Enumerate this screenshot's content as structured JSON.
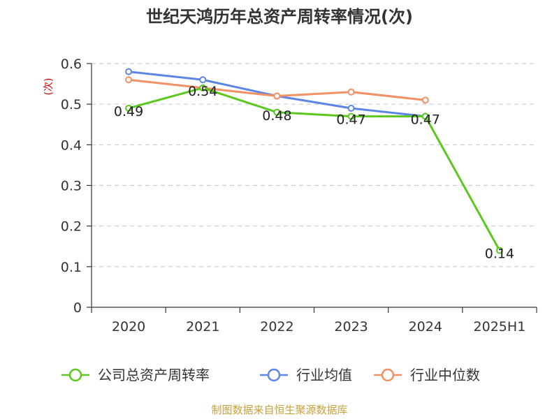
{
  "chart_data": {
    "type": "line",
    "title": "世纪天鸿历年总资产周转率情况(次)",
    "ylabel": "(次)",
    "xlabel": "",
    "categories": [
      "2020",
      "2021",
      "2022",
      "2023",
      "2024",
      "2025H1"
    ],
    "ylim": [
      0,
      0.6
    ],
    "yticks": [
      0,
      0.1,
      0.2,
      0.3,
      0.4,
      0.5,
      0.6
    ],
    "ytick_labels": [
      "0",
      "0.1",
      "0.2",
      "0.3",
      "0.4",
      "0.5",
      "0.6"
    ],
    "grid": true,
    "legend_position": "bottom",
    "series": [
      {
        "name": "公司总资产周转率",
        "color": "#5cc71e",
        "values": [
          0.49,
          0.54,
          0.48,
          0.47,
          0.47,
          0.14
        ],
        "data_labels": [
          "0.49",
          "0.54",
          "0.48",
          "0.47",
          "0.47",
          "0.14"
        ]
      },
      {
        "name": "行业均值",
        "color": "#5b86e5",
        "values": [
          0.58,
          0.56,
          0.52,
          0.49,
          0.47,
          null
        ]
      },
      {
        "name": "行业中位数",
        "color": "#f39064",
        "values": [
          0.56,
          0.54,
          0.52,
          0.53,
          0.51,
          null
        ]
      }
    ],
    "source": "制图数据来自恒生聚源数据库"
  }
}
